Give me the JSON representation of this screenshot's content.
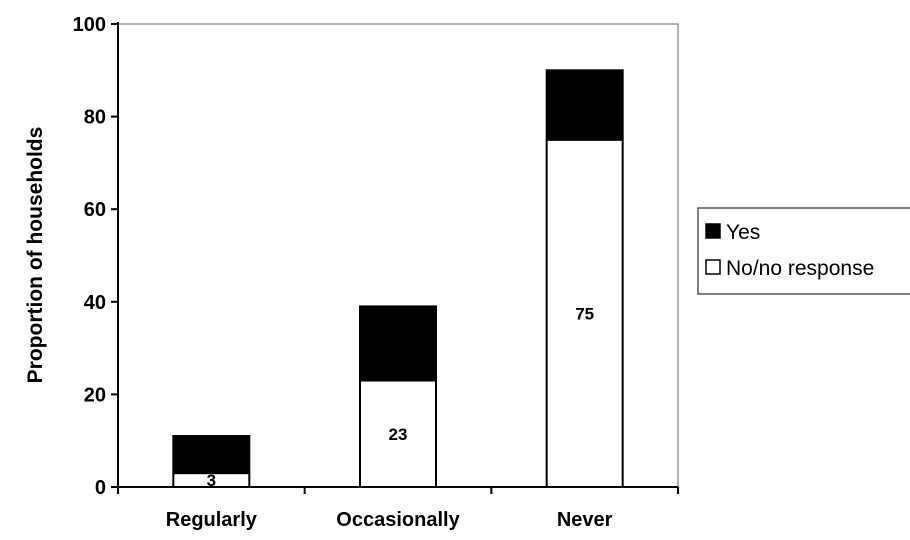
{
  "chart_data": {
    "type": "bar",
    "stacked": true,
    "categories": [
      "Regularly",
      "Occasionally",
      "Never"
    ],
    "series": [
      {
        "name": "No/no response",
        "values": [
          3,
          23,
          75
        ],
        "color": "#ffffff",
        "data_labels": [
          "3",
          "23",
          "75"
        ]
      },
      {
        "name": "Yes",
        "values": [
          8,
          16,
          15
        ],
        "color": "#000000"
      }
    ],
    "title": "",
    "xlabel": "",
    "ylabel": "Proportion of households",
    "ylim": [
      0,
      100
    ],
    "yticks": [
      "0",
      "20",
      "40",
      "60",
      "80",
      "100"
    ],
    "grid": false,
    "legend": {
      "placement": "right",
      "order": [
        "Yes",
        "No/no response"
      ]
    }
  }
}
